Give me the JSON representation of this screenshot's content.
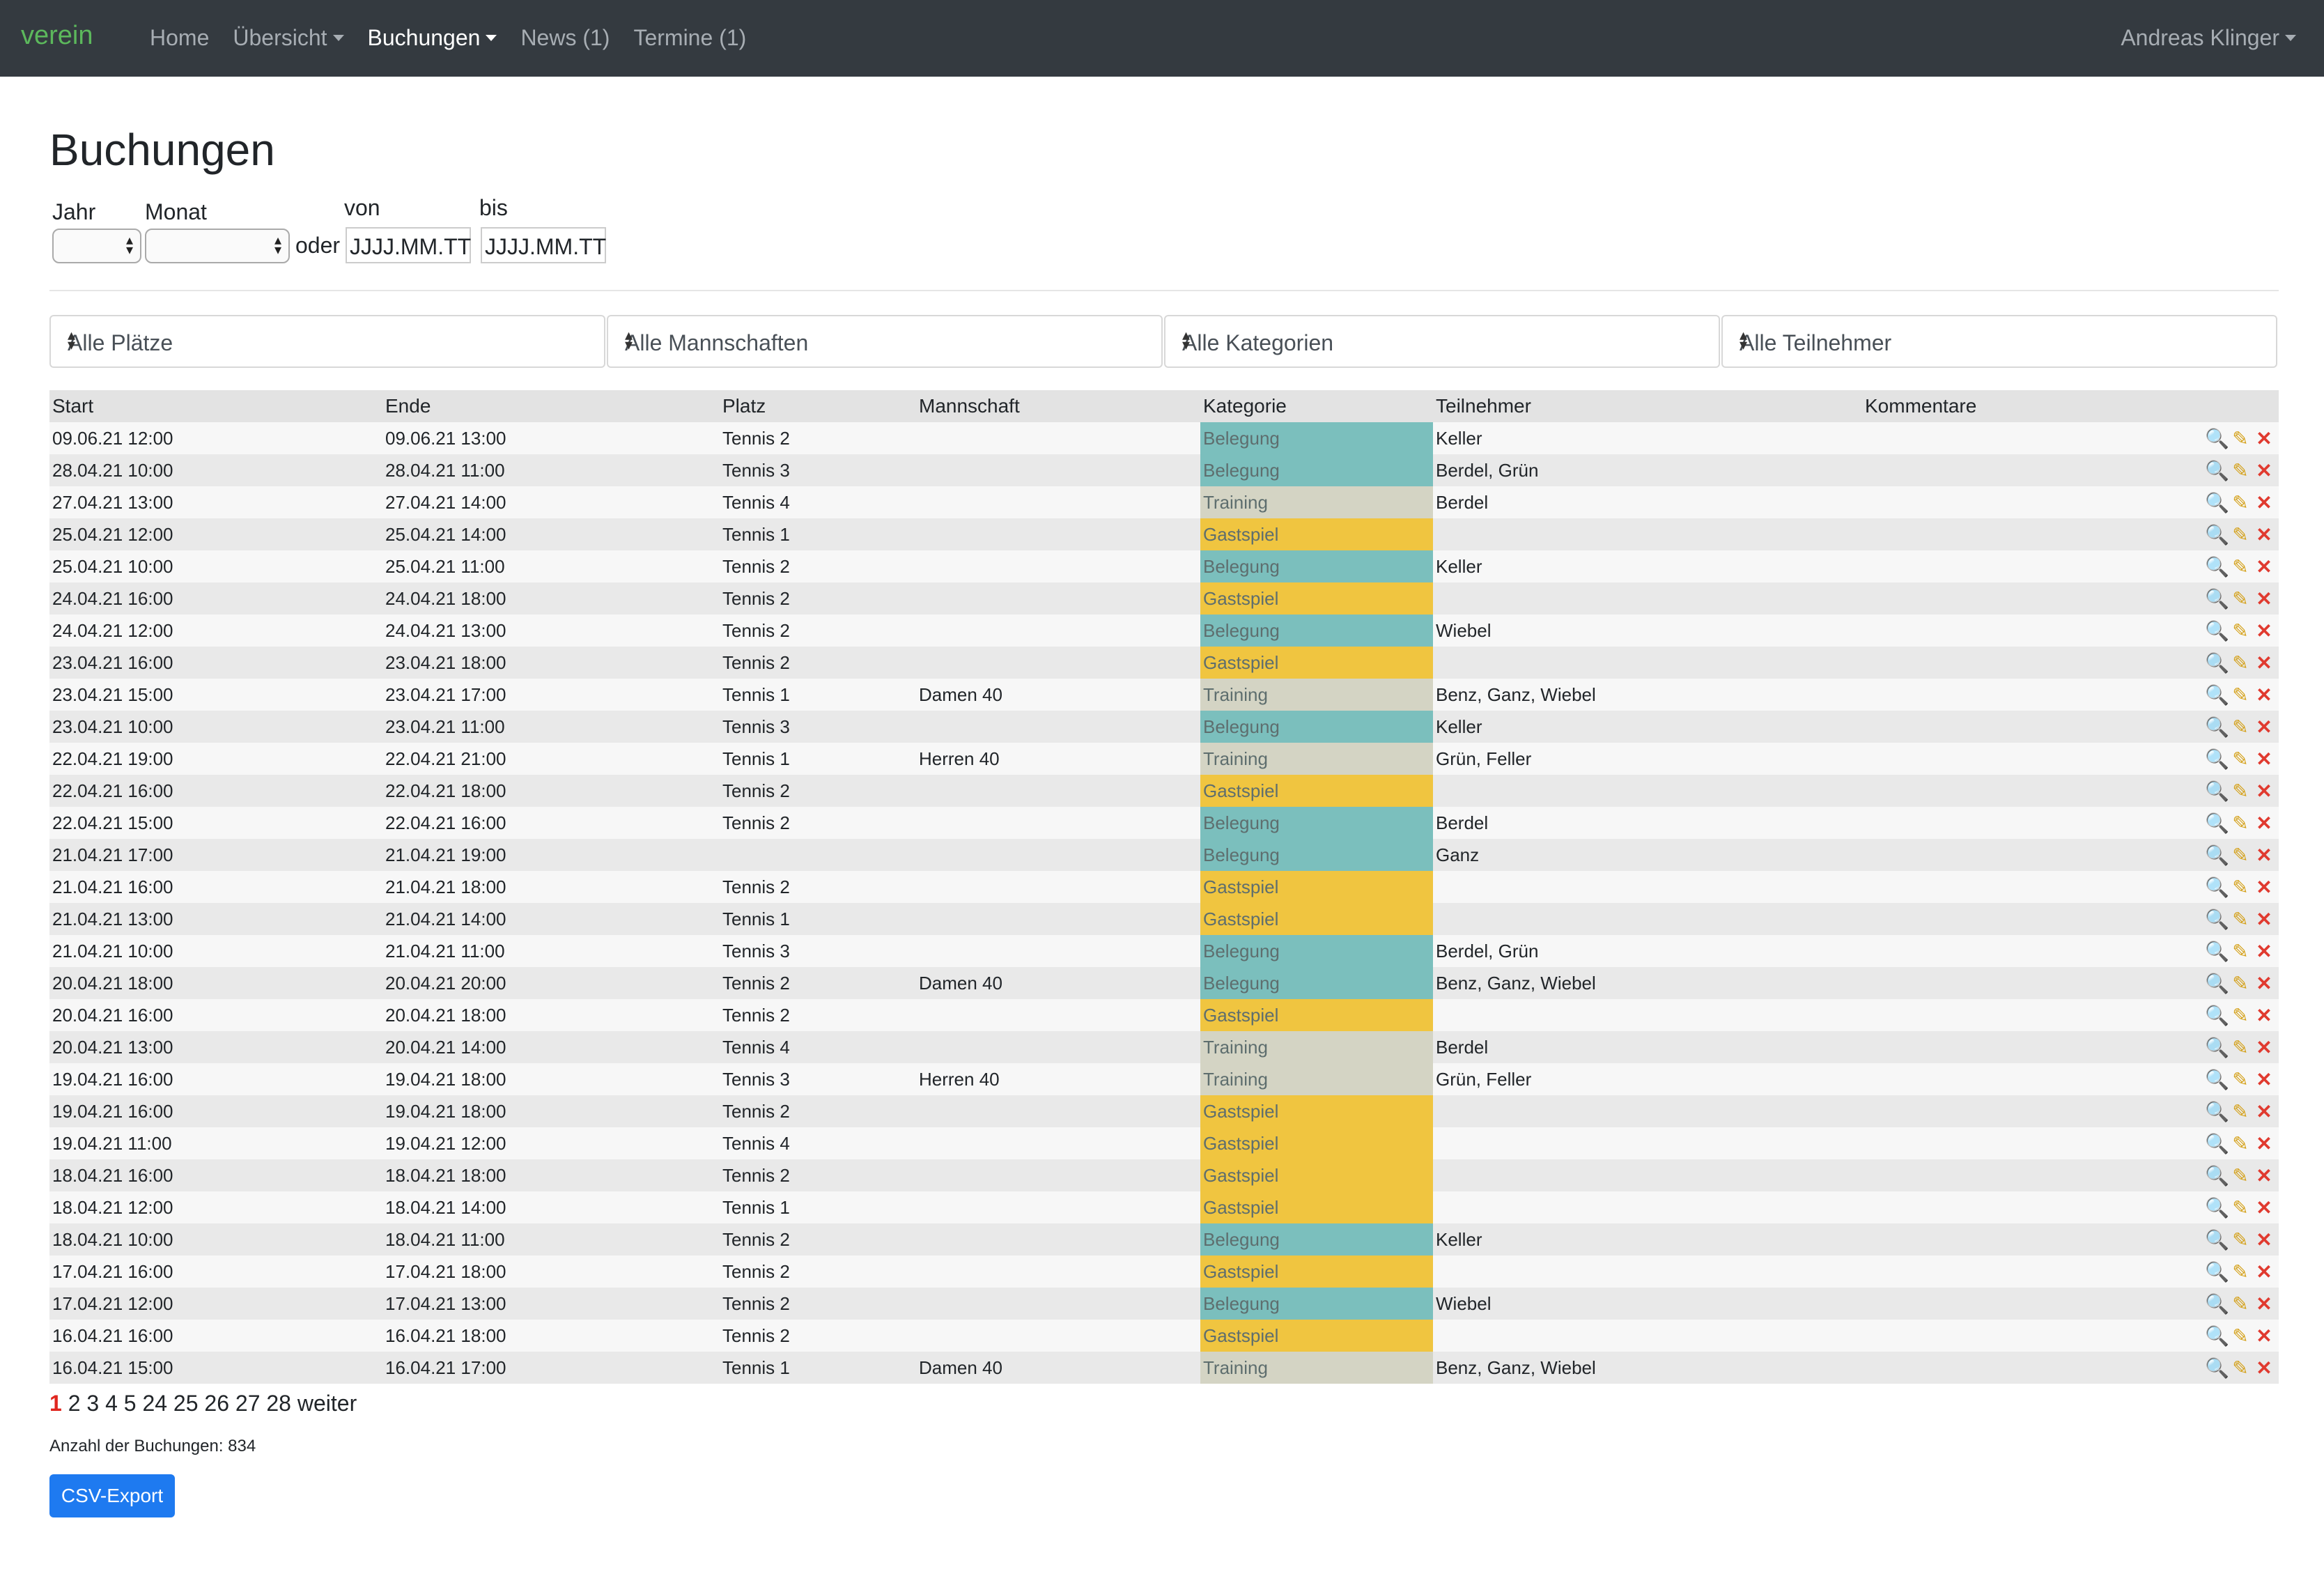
{
  "nav": {
    "brand": "verein",
    "items": [
      {
        "label": "Home"
      },
      {
        "label": "Übersicht"
      },
      {
        "label": "Buchungen"
      },
      {
        "label": "News (1)"
      },
      {
        "label": "Termine (1)"
      }
    ],
    "user": "Andreas Klinger"
  },
  "page": {
    "title": "Buchungen"
  },
  "form": {
    "jahr_label": "Jahr",
    "monat_label": "Monat",
    "oder": "oder",
    "von_label": "von",
    "bis_label": "bis",
    "von_placeholder": "JJJJ.MM.TT",
    "bis_placeholder": "JJJJ.MM.TT"
  },
  "filters": {
    "plaetze": "Alle Plätze",
    "mannschaften": "Alle Mannschaften",
    "kategorien": "Alle Kategorien",
    "teilnehmer": "Alle Teilnehmer"
  },
  "table": {
    "headers": {
      "start": "Start",
      "ende": "Ende",
      "platz": "Platz",
      "mannschaft": "Mannschaft",
      "kategorie": "Kategorie",
      "teilnehmer": "Teilnehmer",
      "kommentare": "Kommentare"
    },
    "rows": [
      {
        "start": "09.06.21 12:00",
        "ende": "09.06.21 13:00",
        "platz": "Tennis 2",
        "mannschaft": "",
        "kategorie": "Belegung",
        "teilnehmer": "Keller"
      },
      {
        "start": "28.04.21 10:00",
        "ende": "28.04.21 11:00",
        "platz": "Tennis 3",
        "mannschaft": "",
        "kategorie": "Belegung",
        "teilnehmer": "Berdel, Grün"
      },
      {
        "start": "27.04.21 13:00",
        "ende": "27.04.21 14:00",
        "platz": "Tennis 4",
        "mannschaft": "",
        "kategorie": "Training",
        "teilnehmer": "Berdel"
      },
      {
        "start": "25.04.21 12:00",
        "ende": "25.04.21 14:00",
        "platz": "Tennis 1",
        "mannschaft": "",
        "kategorie": "Gastspiel",
        "teilnehmer": ""
      },
      {
        "start": "25.04.21 10:00",
        "ende": "25.04.21 11:00",
        "platz": "Tennis 2",
        "mannschaft": "",
        "kategorie": "Belegung",
        "teilnehmer": "Keller"
      },
      {
        "start": "24.04.21 16:00",
        "ende": "24.04.21 18:00",
        "platz": "Tennis 2",
        "mannschaft": "",
        "kategorie": "Gastspiel",
        "teilnehmer": ""
      },
      {
        "start": "24.04.21 12:00",
        "ende": "24.04.21 13:00",
        "platz": "Tennis 2",
        "mannschaft": "",
        "kategorie": "Belegung",
        "teilnehmer": "Wiebel"
      },
      {
        "start": "23.04.21 16:00",
        "ende": "23.04.21 18:00",
        "platz": "Tennis 2",
        "mannschaft": "",
        "kategorie": "Gastspiel",
        "teilnehmer": ""
      },
      {
        "start": "23.04.21 15:00",
        "ende": "23.04.21 17:00",
        "platz": "Tennis 1",
        "mannschaft": "Damen 40",
        "kategorie": "Training",
        "teilnehmer": "Benz, Ganz, Wiebel"
      },
      {
        "start": "23.04.21 10:00",
        "ende": "23.04.21 11:00",
        "platz": "Tennis 3",
        "mannschaft": "",
        "kategorie": "Belegung",
        "teilnehmer": "Keller"
      },
      {
        "start": "22.04.21 19:00",
        "ende": "22.04.21 21:00",
        "platz": "Tennis 1",
        "mannschaft": "Herren 40",
        "kategorie": "Training",
        "teilnehmer": "Grün, Feller"
      },
      {
        "start": "22.04.21 16:00",
        "ende": "22.04.21 18:00",
        "platz": "Tennis 2",
        "mannschaft": "",
        "kategorie": "Gastspiel",
        "teilnehmer": ""
      },
      {
        "start": "22.04.21 15:00",
        "ende": "22.04.21 16:00",
        "platz": "Tennis 2",
        "mannschaft": "",
        "kategorie": "Belegung",
        "teilnehmer": "Berdel"
      },
      {
        "start": "21.04.21 17:00",
        "ende": "21.04.21 19:00",
        "platz": "",
        "mannschaft": "",
        "kategorie": "Belegung",
        "teilnehmer": "Ganz"
      },
      {
        "start": "21.04.21 16:00",
        "ende": "21.04.21 18:00",
        "platz": "Tennis 2",
        "mannschaft": "",
        "kategorie": "Gastspiel",
        "teilnehmer": ""
      },
      {
        "start": "21.04.21 13:00",
        "ende": "21.04.21 14:00",
        "platz": "Tennis 1",
        "mannschaft": "",
        "kategorie": "Gastspiel",
        "teilnehmer": ""
      },
      {
        "start": "21.04.21 10:00",
        "ende": "21.04.21 11:00",
        "platz": "Tennis 3",
        "mannschaft": "",
        "kategorie": "Belegung",
        "teilnehmer": "Berdel, Grün"
      },
      {
        "start": "20.04.21 18:00",
        "ende": "20.04.21 20:00",
        "platz": "Tennis 2",
        "mannschaft": "Damen 40",
        "kategorie": "Belegung",
        "teilnehmer": "Benz, Ganz, Wiebel"
      },
      {
        "start": "20.04.21 16:00",
        "ende": "20.04.21 18:00",
        "platz": "Tennis 2",
        "mannschaft": "",
        "kategorie": "Gastspiel",
        "teilnehmer": ""
      },
      {
        "start": "20.04.21 13:00",
        "ende": "20.04.21 14:00",
        "platz": "Tennis 4",
        "mannschaft": "",
        "kategorie": "Training",
        "teilnehmer": "Berdel"
      },
      {
        "start": "19.04.21 16:00",
        "ende": "19.04.21 18:00",
        "platz": "Tennis 3",
        "mannschaft": "Herren 40",
        "kategorie": "Training",
        "teilnehmer": "Grün, Feller"
      },
      {
        "start": "19.04.21 16:00",
        "ende": "19.04.21 18:00",
        "platz": "Tennis 2",
        "mannschaft": "",
        "kategorie": "Gastspiel",
        "teilnehmer": ""
      },
      {
        "start": "19.04.21 11:00",
        "ende": "19.04.21 12:00",
        "platz": "Tennis 4",
        "mannschaft": "",
        "kategorie": "Gastspiel",
        "teilnehmer": ""
      },
      {
        "start": "18.04.21 16:00",
        "ende": "18.04.21 18:00",
        "platz": "Tennis 2",
        "mannschaft": "",
        "kategorie": "Gastspiel",
        "teilnehmer": ""
      },
      {
        "start": "18.04.21 12:00",
        "ende": "18.04.21 14:00",
        "platz": "Tennis 1",
        "mannschaft": "",
        "kategorie": "Gastspiel",
        "teilnehmer": ""
      },
      {
        "start": "18.04.21 10:00",
        "ende": "18.04.21 11:00",
        "platz": "Tennis 2",
        "mannschaft": "",
        "kategorie": "Belegung",
        "teilnehmer": "Keller"
      },
      {
        "start": "17.04.21 16:00",
        "ende": "17.04.21 18:00",
        "platz": "Tennis 2",
        "mannschaft": "",
        "kategorie": "Gastspiel",
        "teilnehmer": ""
      },
      {
        "start": "17.04.21 12:00",
        "ende": "17.04.21 13:00",
        "platz": "Tennis 2",
        "mannschaft": "",
        "kategorie": "Belegung",
        "teilnehmer": "Wiebel"
      },
      {
        "start": "16.04.21 16:00",
        "ende": "16.04.21 18:00",
        "platz": "Tennis 2",
        "mannschaft": "",
        "kategorie": "Gastspiel",
        "teilnehmer": ""
      },
      {
        "start": "16.04.21 15:00",
        "ende": "16.04.21 17:00",
        "platz": "Tennis 1",
        "mannschaft": "Damen 40",
        "kategorie": "Training",
        "teilnehmer": "Benz, Ganz, Wiebel"
      }
    ]
  },
  "category_colors": {
    "Belegung": "#7bbfbd",
    "Training": "#d4d4c4",
    "Gastspiel": "#f0c540"
  },
  "icons": {
    "view": "magnifier-icon",
    "edit": "pencil-icon",
    "delete": "delete-icon"
  },
  "pagination": {
    "current": "1",
    "pages": [
      "2",
      "3",
      "4",
      "5",
      "24",
      "25",
      "26",
      "27",
      "28"
    ],
    "next": "weiter"
  },
  "footer": {
    "count_text": "Anzahl der Buchungen: 834",
    "export_label": "CSV-Export"
  }
}
